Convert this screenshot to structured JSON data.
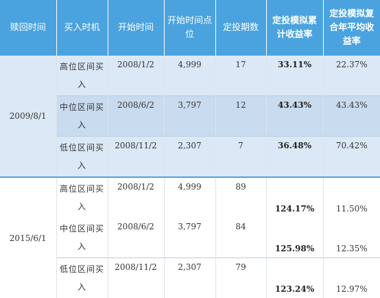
{
  "headers": [
    {
      "text": "赎回时间"
    },
    {
      "text": "买入时机"
    },
    {
      "text": "开始时间"
    },
    {
      "text": "开始时间点位"
    },
    {
      "text": "定投期数"
    },
    {
      "text": "定投模拟累计收益率"
    },
    {
      "text": "定投模拟复合年平均收益率"
    }
  ],
  "groups": [
    {
      "redeem_date": "2009/8/1",
      "rows": [
        {
          "timing": "高位区间买入",
          "start": "2008/1/2",
          "level": "4,999",
          "periods": "17",
          "cum_return": "33.11%",
          "cagr": "22.37%"
        },
        {
          "timing": "中位区间买入",
          "start": "2008/6/2",
          "level": "3,797",
          "periods": "12",
          "cum_return": "43.43%",
          "cagr": "43.43%"
        },
        {
          "timing": "低位区间买入",
          "start": "2008/11/2",
          "level": "2,307",
          "periods": "7",
          "cum_return": "36.48%",
          "cagr": "70.42%"
        }
      ]
    },
    {
      "redeem_date": "2015/6/1",
      "rows": [
        {
          "timing": "高位区间买入",
          "start": "2008/1/2",
          "level": "4,999",
          "periods": "89",
          "cum_return": "124.17%",
          "cagr": "11.50%"
        },
        {
          "timing": "中位区间买入",
          "start": "2008/6/2",
          "level": "3,797",
          "periods": "84",
          "cum_return": "125.98%",
          "cagr": "12.35%"
        },
        {
          "timing": "低位区间买入",
          "start": "2008/11/2",
          "level": "2,307",
          "periods": "79",
          "cum_return": "123.24%",
          "cagr": "12.97%"
        }
      ]
    }
  ]
}
